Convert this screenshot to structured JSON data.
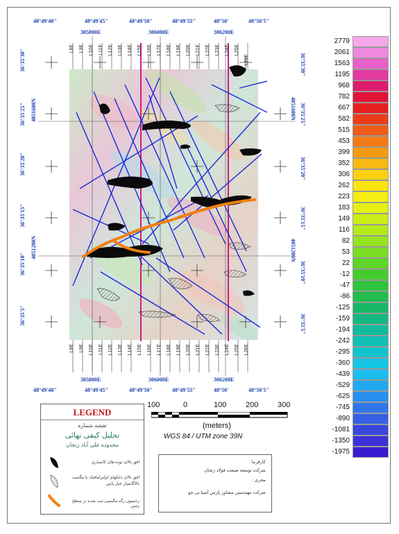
{
  "map": {
    "top_longitudes": [
      "48°49'40\"",
      "48°49'45\"",
      "48°49'50\"",
      "48°49'55\"",
      "48°50'",
      "48°50'5\""
    ],
    "bottom_longitudes": [
      "48°49'40\"",
      "48°49'45\"",
      "48°49'50\"",
      "48°49'55\"",
      "48°50'",
      "48°50'5\""
    ],
    "top_eastings": [
      "305800E",
      "306000E",
      "306200E"
    ],
    "bottom_eastings": [
      "305800E",
      "306000E",
      "306200E"
    ],
    "left_latitudes": [
      "36°35'30\"",
      "36°35'25\"",
      "36°35'20\"",
      "36°35'15\"",
      "36°35'10\"",
      "36°35'5\""
    ],
    "right_latitudes": [
      "36°35'30\"",
      "36°35'25\"",
      "36°35'20\"",
      "36°35'15\"",
      "36°35'10\"",
      "36°35'5\""
    ],
    "left_northings": [
      "4051600N",
      "4051200N"
    ],
    "right_northings": [
      "4051600N",
      "4051200N"
    ],
    "top_survey_lines": [
      "L8E",
      "L9E",
      "L10E",
      "L11E",
      "L12E",
      "L13E",
      "L14E",
      "L15E",
      "L16E",
      "L17E",
      "L18E",
      "L19E",
      "L20E",
      "L21E",
      "L22E",
      "L23E",
      "L24E",
      "L25E",
      "L26E"
    ],
    "bottom_survey_lines": [
      "L8E",
      "L9E",
      "L10E",
      "L11E",
      "L12E",
      "L13E",
      "L14E",
      "L15E",
      "L16E",
      "L17E",
      "L18E",
      "L19E",
      "L20E",
      "L21E",
      "L22E",
      "L23E",
      "L24E",
      "L25E",
      "L26E"
    ]
  },
  "colorbar": {
    "values": [
      "2779",
      "2061",
      "1563",
      "1195",
      "968",
      "782",
      "667",
      "582",
      "515",
      "453",
      "399",
      "352",
      "306",
      "262",
      "223",
      "183",
      "149",
      "116",
      "82",
      "53",
      "22",
      "-12",
      "-47",
      "-86",
      "-125",
      "-159",
      "-194",
      "-242",
      "-295",
      "-360",
      "-439",
      "-529",
      "-625",
      "-745",
      "-890",
      "-1081",
      "-1350",
      "-1975"
    ],
    "colors": [
      "#f4a8e8",
      "#ee88e0",
      "#e860c8",
      "#e23aa0",
      "#de1c6e",
      "#e01438",
      "#e61e1e",
      "#ea3c1a",
      "#ee5a18",
      "#f27a16",
      "#f69a14",
      "#f8b814",
      "#fad010",
      "#fce410",
      "#f6ee10",
      "#e4f014",
      "#ccee18",
      "#b2ea1c",
      "#96e420",
      "#7ade24",
      "#5ed628",
      "#44cc2e",
      "#30c43c",
      "#22bc50",
      "#18b866",
      "#14b880",
      "#10bc9a",
      "#10c0b4",
      "#12c4ce",
      "#16c6e4",
      "#1cbef0",
      "#22a8f0",
      "#2890ee",
      "#2e76ea",
      "#3460e4",
      "#3848de",
      "#3c30d6",
      "#3a1cd0"
    ]
  },
  "scale": {
    "ticks": [
      "100",
      "0",
      "100",
      "200",
      "300"
    ],
    "units": "(meters)",
    "projection": "WGS 84 / UTM zone 39N"
  },
  "legend": {
    "title": "LEGEND",
    "subtitle1": "نقشه شماره",
    "subtitle2": "تحلیل کیفی نهائی",
    "subtitle3": "محدوده علی آباد زنجان",
    "item1": "افق بالای توده های کانساری",
    "item2": "افق بالای دایکهای اولترامافیک یا مگنتیت بالاگانسار عیار پایین",
    "item3": "رخنمون رگه مگنتیتی ثبت شده در سطح زمین"
  },
  "info": {
    "client_label": "کارفرما :",
    "client": "شرکت توسعه صنعت فولاد زنجان",
    "contractor_label": "مجری :",
    "contractor": "شرکت مهندسین مشاور پارس آسیا بی جو"
  }
}
